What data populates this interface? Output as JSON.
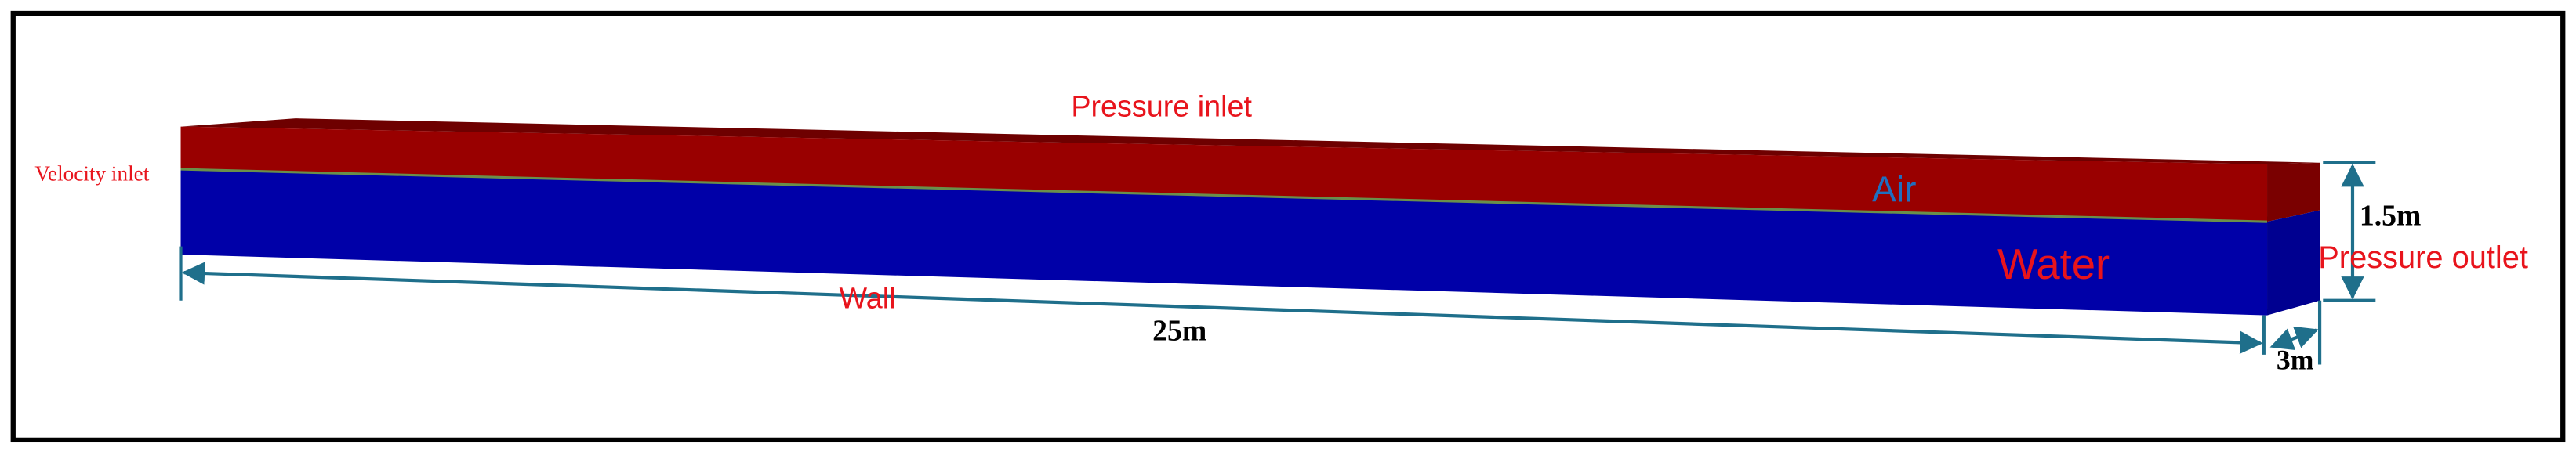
{
  "labels": {
    "top": "Pressure inlet",
    "left": "Velocity inlet",
    "air": "Air",
    "water": "Water",
    "right": "Pressure outlet",
    "bottom": "Wall"
  },
  "dimensions": {
    "length": "25m",
    "height": "1.5m",
    "width": "3m"
  }
}
